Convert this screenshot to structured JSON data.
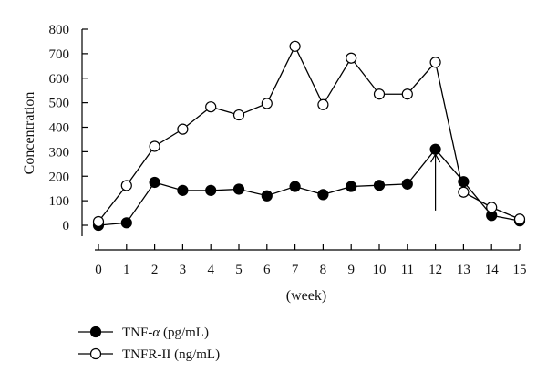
{
  "chart_data": {
    "type": "line",
    "xlabel": "(week)",
    "ylabel": "Concentration",
    "x": [
      0,
      1,
      2,
      3,
      4,
      5,
      6,
      7,
      8,
      9,
      10,
      11,
      12,
      13,
      14,
      15
    ],
    "xticks": [
      0,
      1,
      2,
      3,
      4,
      5,
      6,
      7,
      8,
      9,
      10,
      11,
      12,
      13,
      14,
      15
    ],
    "yticks": [
      0,
      100,
      200,
      300,
      400,
      500,
      600,
      700,
      800
    ],
    "xlim": [
      0,
      15
    ],
    "ylim": [
      0,
      800
    ],
    "grid": false,
    "legend_position": "bottom-left",
    "series": [
      {
        "name": "TNF-α (pg/mL)",
        "label_prefix": "TNF-",
        "label_symbol": "α",
        "label_suffix": " (pg/mL)",
        "marker": "filled-circle",
        "color": "#000000",
        "values": [
          0,
          10,
          175,
          142,
          142,
          147,
          120,
          158,
          125,
          158,
          163,
          168,
          310,
          178,
          40,
          18
        ]
      },
      {
        "name": "TNFR-II (ng/mL)",
        "label_prefix": "TNFR-II (ng/mL)",
        "label_symbol": "",
        "label_suffix": "",
        "marker": "open-circle",
        "color": "#000000",
        "values": [
          15,
          162,
          322,
          392,
          483,
          450,
          497,
          730,
          492,
          682,
          535,
          535,
          665,
          135,
          73,
          25
        ]
      }
    ],
    "annotations": [
      {
        "type": "arrow",
        "x": 12,
        "y_from": 60,
        "y_to": 290
      }
    ]
  }
}
